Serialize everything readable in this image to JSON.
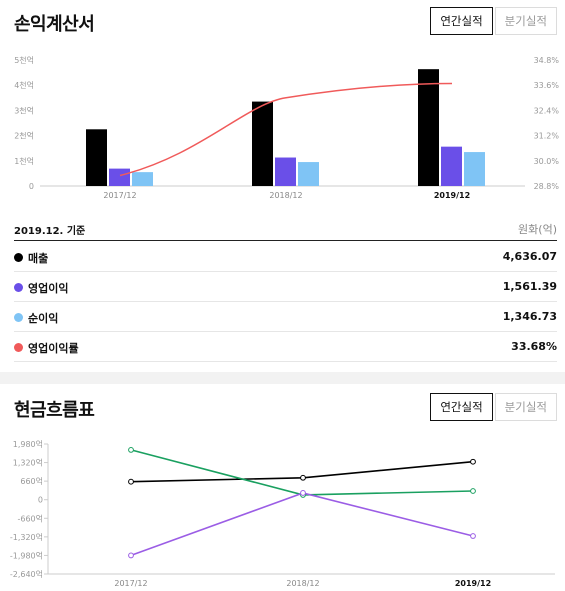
{
  "income": {
    "title": "손익계산서",
    "toggle": {
      "annual": "연간실적",
      "quarterly": "분기실적"
    },
    "basis": "2019.12. 기준",
    "unit": "원화(억)",
    "rows": [
      {
        "label": "매출",
        "value": "4,636.07",
        "color": "#000000"
      },
      {
        "label": "영업이익",
        "value": "1,561.39",
        "color": "#6a4fe8"
      },
      {
        "label": "순이익",
        "value": "1,346.73",
        "color": "#7fc4f5"
      },
      {
        "label": "영업이익률",
        "value": "33.68%",
        "color": "#f05a5a"
      }
    ]
  },
  "cashflow": {
    "title": "현금흐름표",
    "toggle": {
      "annual": "연간실적",
      "quarterly": "분기실적"
    }
  },
  "chart_data": [
    {
      "type": "bar",
      "categories": [
        "2017/12",
        "2018/12",
        "2019/12"
      ],
      "highlight_category": "2019/12",
      "yticks_left": [
        "0",
        "1천억",
        "2천억",
        "3천억",
        "4천억",
        "5천억"
      ],
      "ylim_left": [
        0,
        5000
      ],
      "yticks_right": [
        "28.8%",
        "30.0%",
        "31.2%",
        "32.4%",
        "33.6%",
        "34.8%"
      ],
      "ylim_right": [
        28.8,
        34.8
      ],
      "series": [
        {
          "name": "매출",
          "color": "#000000",
          "values": [
            2250,
            3350,
            4636.07
          ]
        },
        {
          "name": "영업이익",
          "color": "#6a4fe8",
          "values": [
            690,
            1130,
            1561.39
          ]
        },
        {
          "name": "순이익",
          "color": "#7fc4f5",
          "values": [
            550,
            950,
            1346.73
          ]
        }
      ],
      "line_series": {
        "name": "영업이익률",
        "color": "#f05a5a",
        "values": [
          29.3,
          33.0,
          33.68
        ]
      }
    },
    {
      "type": "line",
      "categories": [
        "2017/12",
        "2018/12",
        "2019/12"
      ],
      "highlight_category": "2019/12",
      "yticks": [
        "1,980억",
        "1,320억",
        "660억",
        "0",
        "-660억",
        "-1,320억",
        "-1,980억",
        "-2,640억"
      ],
      "ylim": [
        -2640,
        1980
      ],
      "series": [
        {
          "color": "#000000",
          "values": [
            640,
            780,
            1350
          ]
        },
        {
          "color": "#1aa060",
          "values": [
            1770,
            170,
            310
          ]
        },
        {
          "color": "#9b5de5",
          "values": [
            -1980,
            240,
            -1290
          ]
        }
      ]
    }
  ]
}
